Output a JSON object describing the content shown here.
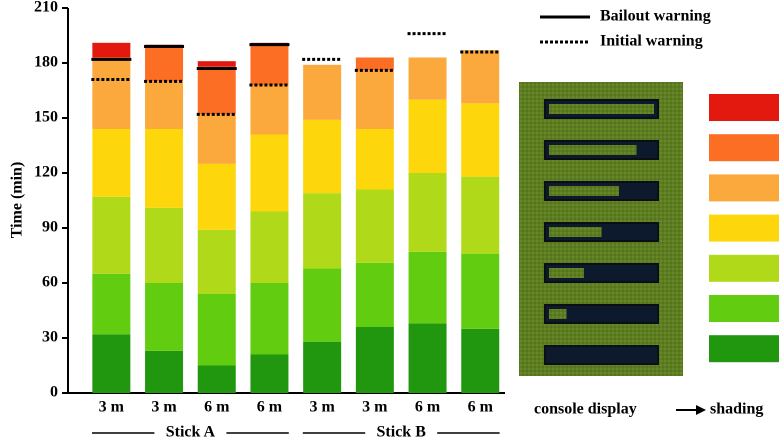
{
  "chart_data": {
    "type": "stacked_bar",
    "y_label": "Time (min)",
    "ylim": [
      0,
      210
    ],
    "yticks": [
      0,
      30,
      60,
      90,
      120,
      150,
      180,
      210
    ],
    "categories": [
      "3 m",
      "3 m",
      "6 m",
      "6 m",
      "3 m",
      "3 m",
      "6 m",
      "6 m"
    ],
    "group_labels": [
      "Stick A",
      "Stick B"
    ],
    "series": [
      {
        "color": "#219710",
        "values": [
          32,
          23,
          15,
          21,
          28,
          36,
          38,
          35
        ]
      },
      {
        "color": "#62cc11",
        "values": [
          33,
          37,
          39,
          39,
          40,
          35,
          39,
          41
        ]
      },
      {
        "color": "#b0d91a",
        "values": [
          42,
          41,
          35,
          39,
          41,
          40,
          43,
          42
        ]
      },
      {
        "color": "#fdd60b",
        "values": [
          37,
          43,
          36,
          42,
          40,
          33,
          40,
          40
        ]
      },
      {
        "color": "#fba93c",
        "values": [
          39,
          26,
          27,
          27,
          30,
          32,
          23,
          29
        ]
      },
      {
        "color": "#fb6e23",
        "values": [
          0,
          19,
          26,
          22,
          0,
          7,
          0,
          0
        ]
      },
      {
        "color": "#e3180f",
        "values": [
          8,
          1,
          3,
          1,
          0,
          0,
          0,
          0
        ]
      }
    ],
    "warnings": [
      {
        "name": "Bailout warning",
        "style": "solid",
        "values": [
          182,
          189,
          177,
          190,
          null,
          null,
          null,
          null
        ]
      },
      {
        "name": "Initial warning",
        "style": "dotted",
        "values": [
          171,
          170,
          152,
          168,
          182,
          176,
          196,
          186
        ]
      }
    ],
    "panel_labels": [
      "console display",
      "shading"
    ]
  }
}
